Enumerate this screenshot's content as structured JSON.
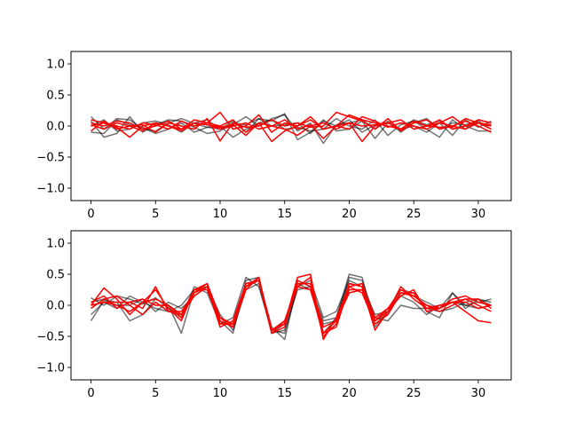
{
  "chart_data": [
    {
      "type": "line",
      "xlim": [
        -1.55,
        32.55
      ],
      "ylim": [
        -1.2,
        1.2
      ],
      "xticks": [
        0,
        5,
        10,
        15,
        20,
        25,
        30
      ],
      "yticks": [
        -1.0,
        -0.5,
        0.0,
        0.5,
        1.0
      ],
      "xtick_labels": [
        "0",
        "5",
        "10",
        "15",
        "20",
        "25",
        "30"
      ],
      "ytick_labels": [
        "−1.0",
        "−0.5",
        "0.0",
        "0.5",
        "1.0"
      ],
      "grid": false,
      "series_colors": {
        "gray": "#000000",
        "red": "#ff0000"
      },
      "series_alpha": {
        "gray": 0.55,
        "red": 1.0
      },
      "x": [
        0,
        1,
        2,
        3,
        4,
        5,
        6,
        7,
        8,
        9,
        10,
        11,
        12,
        13,
        14,
        15,
        16,
        17,
        18,
        19,
        20,
        21,
        22,
        23,
        24,
        25,
        26,
        27,
        28,
        29,
        30,
        31
      ],
      "series": [
        {
          "color": "gray",
          "values": [
            0.15,
            -0.05,
            0.12,
            0.1,
            -0.05,
            -0.08,
            0.05,
            0.12,
            0.04,
            -0.02,
            -0.05,
            0.02,
            0.15,
            0.0,
            0.12,
            0.18,
            -0.08,
            0.05,
            -0.28,
            0.02,
            0.05,
            0.1,
            -0.05,
            0.08,
            -0.1,
            0.05,
            0.12,
            -0.05,
            0.05,
            0.02,
            0.08,
            -0.05
          ]
        },
        {
          "color": "gray",
          "values": [
            0.08,
            -0.18,
            -0.12,
            0.15,
            -0.1,
            0.02,
            0.1,
            0.08,
            -0.02,
            -0.12,
            -0.08,
            0.05,
            0.02,
            0.12,
            0.08,
            0.2,
            -0.22,
            -0.1,
            0.1,
            -0.08,
            -0.05,
            0.08,
            -0.2,
            0.05,
            -0.05,
            0.0,
            -0.1,
            0.05,
            -0.15,
            0.1,
            -0.02,
            0.08
          ]
        },
        {
          "color": "gray",
          "values": [
            -0.1,
            -0.12,
            0.1,
            0.02,
            -0.02,
            -0.12,
            -0.05,
            0.05,
            -0.1,
            -0.02,
            0.0,
            -0.18,
            -0.05,
            0.05,
            0.1,
            -0.05,
            -0.02,
            -0.08,
            -0.05,
            0.12,
            0.0,
            -0.05,
            0.1,
            -0.15,
            0.02,
            0.08,
            -0.05,
            -0.18,
            0.1,
            -0.05,
            0.1,
            0.05
          ]
        },
        {
          "color": "gray",
          "values": [
            0.0,
            0.1,
            -0.08,
            -0.05,
            0.05,
            0.08,
            0.02,
            -0.1,
            0.05,
            0.1,
            -0.05,
            0.08,
            -0.1,
            0.12,
            0.0,
            0.02,
            0.05,
            -0.12,
            0.08,
            0.0,
            0.1,
            -0.1,
            0.02,
            0.05,
            -0.05,
            0.1,
            0.02,
            0.08,
            -0.05,
            0.0,
            -0.08,
            -0.08
          ]
        },
        {
          "color": "red",
          "values": [
            0.1,
            0.05,
            0.0,
            -0.05,
            0.05,
            0.02,
            -0.05,
            0.08,
            0.0,
            0.05,
            0.22,
            -0.05,
            0.0,
            0.18,
            -0.1,
            0.05,
            0.0,
            0.15,
            -0.05,
            0.0,
            0.18,
            0.1,
            0.05,
            0.0,
            -0.05,
            0.08,
            0.0,
            0.05,
            0.15,
            0.0,
            0.05,
            0.02
          ]
        },
        {
          "color": "red",
          "values": [
            -0.08,
            0.08,
            -0.05,
            0.0,
            0.02,
            -0.1,
            0.05,
            0.0,
            -0.05,
            0.12,
            -0.24,
            0.05,
            -0.02,
            0.0,
            0.1,
            0.0,
            0.05,
            -0.02,
            0.0,
            0.22,
            0.15,
            0.08,
            -0.05,
            0.12,
            -0.08,
            0.05,
            0.1,
            -0.05,
            0.0,
            0.08,
            0.0,
            -0.1
          ]
        },
        {
          "color": "red",
          "values": [
            0.05,
            0.0,
            0.08,
            0.05,
            -0.05,
            0.0,
            0.08,
            -0.05,
            0.1,
            0.05,
            0.0,
            0.1,
            -0.1,
            0.05,
            -0.25,
            -0.08,
            0.0,
            0.1,
            -0.05,
            0.0,
            0.05,
            -0.25,
            0.0,
            0.05,
            0.1,
            -0.05,
            0.0,
            0.1,
            -0.05,
            0.0,
            0.1,
            0.05
          ]
        },
        {
          "color": "red",
          "values": [
            0.0,
            0.05,
            -0.02,
            -0.18,
            0.0,
            0.05,
            0.0,
            -0.05,
            0.05,
            0.02,
            -0.05,
            0.0,
            0.05,
            -0.05,
            0.0,
            0.1,
            -0.05,
            0.02,
            -0.2,
            0.0,
            -0.05,
            0.15,
            0.08,
            -0.02,
            0.05,
            0.0,
            -0.05,
            0.05,
            0.0,
            -0.05,
            0.05,
            0.0
          ]
        },
        {
          "color": "red",
          "values": [
            0.02,
            -0.05,
            0.05,
            0.0,
            -0.08,
            0.05,
            0.0,
            -0.08,
            0.05,
            0.02,
            -0.02,
            0.02,
            -0.15,
            0.05,
            0.0,
            -0.05,
            -0.15,
            0.0,
            0.05,
            -0.05,
            0.05,
            0.0,
            0.02,
            0.05,
            -0.05,
            0.08,
            0.0,
            -0.02,
            -0.02,
            0.12,
            0.05,
            -0.05
          ]
        }
      ]
    },
    {
      "type": "line",
      "xlim": [
        -1.55,
        32.55
      ],
      "ylim": [
        -1.2,
        1.2
      ],
      "xticks": [
        0,
        5,
        10,
        15,
        20,
        25,
        30
      ],
      "yticks": [
        -1.0,
        -0.5,
        0.0,
        0.5,
        1.0
      ],
      "xtick_labels": [
        "0",
        "5",
        "10",
        "15",
        "20",
        "25",
        "30"
      ],
      "ytick_labels": [
        "−1.0",
        "−0.5",
        "0.0",
        "0.5",
        "1.0"
      ],
      "grid": false,
      "series_colors": {
        "gray": "#000000",
        "red": "#ff0000"
      },
      "series_alpha": {
        "gray": 0.55,
        "red": 1.0
      },
      "x": [
        0,
        1,
        2,
        3,
        4,
        5,
        6,
        7,
        8,
        9,
        10,
        11,
        12,
        13,
        14,
        15,
        16,
        17,
        18,
        19,
        20,
        21,
        22,
        23,
        24,
        25,
        26,
        27,
        28,
        29,
        30,
        31
      ],
      "series": [
        {
          "color": "gray",
          "values": [
            -0.25,
            0.08,
            0.05,
            -0.25,
            -0.15,
            0.1,
            0.0,
            -0.45,
            0.25,
            0.3,
            -0.25,
            -0.45,
            0.4,
            0.45,
            -0.45,
            -0.3,
            0.4,
            0.3,
            -0.45,
            -0.2,
            0.5,
            0.45,
            -0.35,
            -0.1,
            0.25,
            0.2,
            -0.1,
            -0.2,
            0.2,
            0.0,
            0.05,
            0.1
          ]
        },
        {
          "color": "gray",
          "values": [
            0.12,
            0.0,
            0.15,
            0.1,
            0.02,
            0.12,
            -0.05,
            -0.2,
            0.3,
            0.2,
            -0.3,
            -0.2,
            0.45,
            0.3,
            -0.4,
            -0.45,
            0.3,
            0.4,
            -0.2,
            -0.1,
            0.4,
            0.3,
            -0.25,
            -0.15,
            0.2,
            0.15,
            0.05,
            -0.05,
            0.2,
            -0.05,
            0.1,
            0.0
          ]
        },
        {
          "color": "gray",
          "values": [
            -0.15,
            0.05,
            -0.05,
            0.15,
            0.05,
            -0.05,
            -0.1,
            0.0,
            0.25,
            0.35,
            -0.2,
            -0.35,
            0.3,
            0.4,
            -0.35,
            -0.55,
            0.35,
            0.25,
            -0.3,
            -0.25,
            0.45,
            0.4,
            -0.2,
            -0.25,
            0.0,
            -0.05,
            -0.05,
            -0.1,
            -0.05,
            0.05,
            0.1,
            0.05
          ]
        },
        {
          "color": "gray",
          "values": [
            0.05,
            0.1,
            0.0,
            0.0,
            0.1,
            -0.1,
            0.05,
            -0.05,
            0.15,
            0.3,
            -0.15,
            -0.4,
            0.25,
            0.35,
            -0.45,
            -0.4,
            0.25,
            0.3,
            -0.25,
            -0.2,
            0.35,
            0.3,
            -0.15,
            -0.1,
            0.15,
            0.05,
            -0.15,
            0.0,
            0.05,
            0.0,
            -0.05,
            0.0
          ]
        },
        {
          "color": "red",
          "values": [
            0.0,
            0.28,
            0.1,
            -0.15,
            0.05,
            0.25,
            -0.05,
            -0.25,
            0.25,
            0.35,
            -0.3,
            -0.3,
            0.35,
            0.4,
            -0.45,
            -0.35,
            0.4,
            0.3,
            -0.5,
            -0.3,
            0.35,
            0.3,
            -0.4,
            -0.1,
            0.3,
            0.1,
            -0.05,
            -0.05,
            0.1,
            0.15,
            0.05,
            0.0
          ]
        },
        {
          "color": "red",
          "values": [
            0.05,
            0.15,
            -0.05,
            0.05,
            -0.05,
            0.3,
            -0.1,
            -0.15,
            0.25,
            0.25,
            -0.25,
            -0.35,
            0.3,
            0.45,
            -0.4,
            -0.3,
            0.3,
            0.25,
            -0.45,
            -0.35,
            0.3,
            0.2,
            -0.3,
            -0.15,
            0.2,
            0.2,
            -0.05,
            0.0,
            0.05,
            0.1,
            0.0,
            -0.1
          ]
        },
        {
          "color": "red",
          "values": [
            -0.05,
            0.1,
            0.15,
            0.0,
            -0.15,
            0.05,
            -0.1,
            -0.1,
            0.2,
            0.3,
            -0.35,
            -0.25,
            0.35,
            0.4,
            -0.4,
            -0.3,
            0.45,
            0.5,
            -0.55,
            -0.2,
            0.3,
            0.35,
            -0.2,
            -0.05,
            0.15,
            0.25,
            -0.1,
            -0.05,
            0.05,
            -0.1,
            -0.25,
            -0.28
          ]
        },
        {
          "color": "red",
          "values": [
            0.0,
            0.05,
            0.05,
            0.05,
            0.1,
            0.0,
            0.0,
            -0.15,
            0.15,
            0.3,
            -0.2,
            -0.3,
            0.25,
            0.45,
            -0.45,
            -0.25,
            0.35,
            0.35,
            -0.35,
            -0.25,
            0.25,
            0.25,
            -0.25,
            -0.05,
            0.25,
            0.15,
            0.0,
            -0.1,
            0.0,
            0.1,
            0.1,
            -0.05
          ]
        },
        {
          "color": "red",
          "values": [
            0.0,
            0.05,
            0.0,
            -0.1,
            0.05,
            0.1,
            0.0,
            -0.2,
            0.2,
            0.35,
            -0.2,
            -0.35,
            0.3,
            0.4,
            -0.4,
            -0.25,
            0.3,
            0.45,
            -0.45,
            -0.25,
            0.2,
            0.25,
            -0.25,
            -0.1,
            0.2,
            0.15,
            0.0,
            -0.05,
            0.05,
            0.05,
            -0.05,
            0.0
          ]
        }
      ]
    }
  ]
}
